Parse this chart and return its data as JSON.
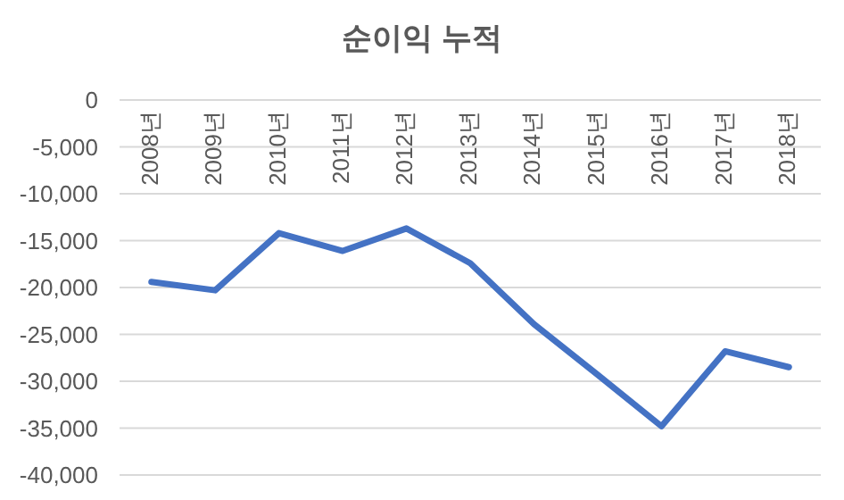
{
  "chart_data": {
    "type": "line",
    "title": "순이익 누적",
    "categories": [
      "2008년",
      "2009년",
      "2010년",
      "2011년",
      "2012년",
      "2013년",
      "2014년",
      "2015년",
      "2016년",
      "2017년",
      "2018년"
    ],
    "series": [
      {
        "color": "#4472c4",
        "values": [
          -19400,
          -20300,
          -14200,
          -16100,
          -13700,
          -17400,
          -23900,
          -29300,
          -34800,
          -26800,
          -28500
        ]
      }
    ],
    "ylim": [
      -40000,
      0
    ],
    "yticks": [
      {
        "value": 0,
        "label": "0"
      },
      {
        "value": -5000,
        "label": "-5,000"
      },
      {
        "value": -10000,
        "label": "-10,000"
      },
      {
        "value": -15000,
        "label": "-15,000"
      },
      {
        "value": -20000,
        "label": "-20,000"
      },
      {
        "value": -25000,
        "label": "-25,000"
      },
      {
        "value": -30000,
        "label": "-30,000"
      },
      {
        "value": -35000,
        "label": "-35,000"
      },
      {
        "value": -40000,
        "label": "-40,000"
      }
    ],
    "grid": "y",
    "marker": "none",
    "line_style": "solid"
  }
}
